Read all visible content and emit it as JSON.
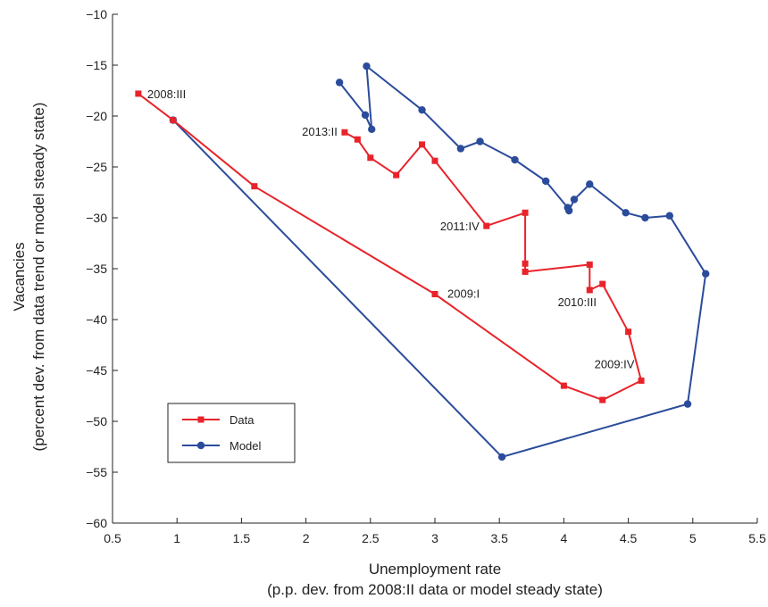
{
  "chart_data": {
    "type": "line",
    "title": "",
    "xlabel": "Unemployment rate",
    "xlabel_sub": "(p.p. dev. from 2008:II data or model steady state)",
    "ylabel": "Vacancies",
    "ylabel_sub": "(percent dev. from data trend or model steady state)",
    "xlim": [
      0.5,
      5.5
    ],
    "ylim": [
      -60,
      -10
    ],
    "xticks": [
      "0.5",
      "1",
      "1.5",
      "2",
      "2.5",
      "3",
      "3.5",
      "4",
      "4.5",
      "5",
      "5.5"
    ],
    "yticks": [
      "−10",
      "−15",
      "−20",
      "−25",
      "−30",
      "−35",
      "−40",
      "−45",
      "−50",
      "−55",
      "−60"
    ],
    "grid": false,
    "legend_position": "lower-left",
    "series": [
      {
        "name": "Data",
        "color": "#e8232a",
        "marker": "square",
        "points": [
          [
            0.7,
            -17.8
          ],
          [
            0.97,
            -20.4
          ],
          [
            1.6,
            -26.9
          ],
          [
            3.0,
            -37.5
          ],
          [
            4.0,
            -46.5
          ],
          [
            4.3,
            -47.9
          ],
          [
            4.6,
            -46.0
          ],
          [
            4.5,
            -41.2
          ],
          [
            4.3,
            -36.5
          ],
          [
            4.2,
            -37.1
          ],
          [
            4.2,
            -34.6
          ],
          [
            3.7,
            -35.3
          ],
          [
            3.7,
            -34.5
          ],
          [
            3.7,
            -29.5
          ],
          [
            3.4,
            -30.8
          ],
          [
            3.0,
            -24.4
          ],
          [
            2.9,
            -22.8
          ],
          [
            2.7,
            -25.8
          ],
          [
            2.5,
            -24.1
          ],
          [
            2.4,
            -22.3
          ],
          [
            2.3,
            -21.6
          ]
        ]
      },
      {
        "name": "Model",
        "color": "#2b4c9b",
        "marker": "circle",
        "points": [
          [
            0.97,
            -20.4
          ],
          [
            3.52,
            -53.5
          ],
          [
            4.96,
            -48.3
          ],
          [
            5.1,
            -35.5
          ],
          [
            4.82,
            -29.8
          ],
          [
            4.63,
            -30.0
          ],
          [
            4.48,
            -29.5
          ],
          [
            4.2,
            -26.7
          ],
          [
            4.08,
            -28.2
          ],
          [
            4.04,
            -29.3
          ],
          [
            4.03,
            -29.0
          ],
          [
            3.86,
            -26.4
          ],
          [
            3.62,
            -24.3
          ],
          [
            3.35,
            -22.5
          ],
          [
            3.2,
            -23.2
          ],
          [
            2.9,
            -19.4
          ],
          [
            2.47,
            -15.1
          ],
          [
            2.51,
            -21.3
          ],
          [
            2.46,
            -19.9
          ],
          [
            2.26,
            -16.7
          ]
        ]
      }
    ],
    "annotations": [
      {
        "text": "2008:III",
        "x": 0.7,
        "y": -17.8
      },
      {
        "text": "2013:II",
        "x": 2.3,
        "y": -21.6
      },
      {
        "text": "2011:IV",
        "x": 3.4,
        "y": -30.8
      },
      {
        "text": "2010:III",
        "x": 4.2,
        "y": -37.1
      },
      {
        "text": "2009:I",
        "x": 3.0,
        "y": -37.5
      },
      {
        "text": "2009:IV",
        "x": 4.6,
        "y": -46.0
      }
    ]
  }
}
